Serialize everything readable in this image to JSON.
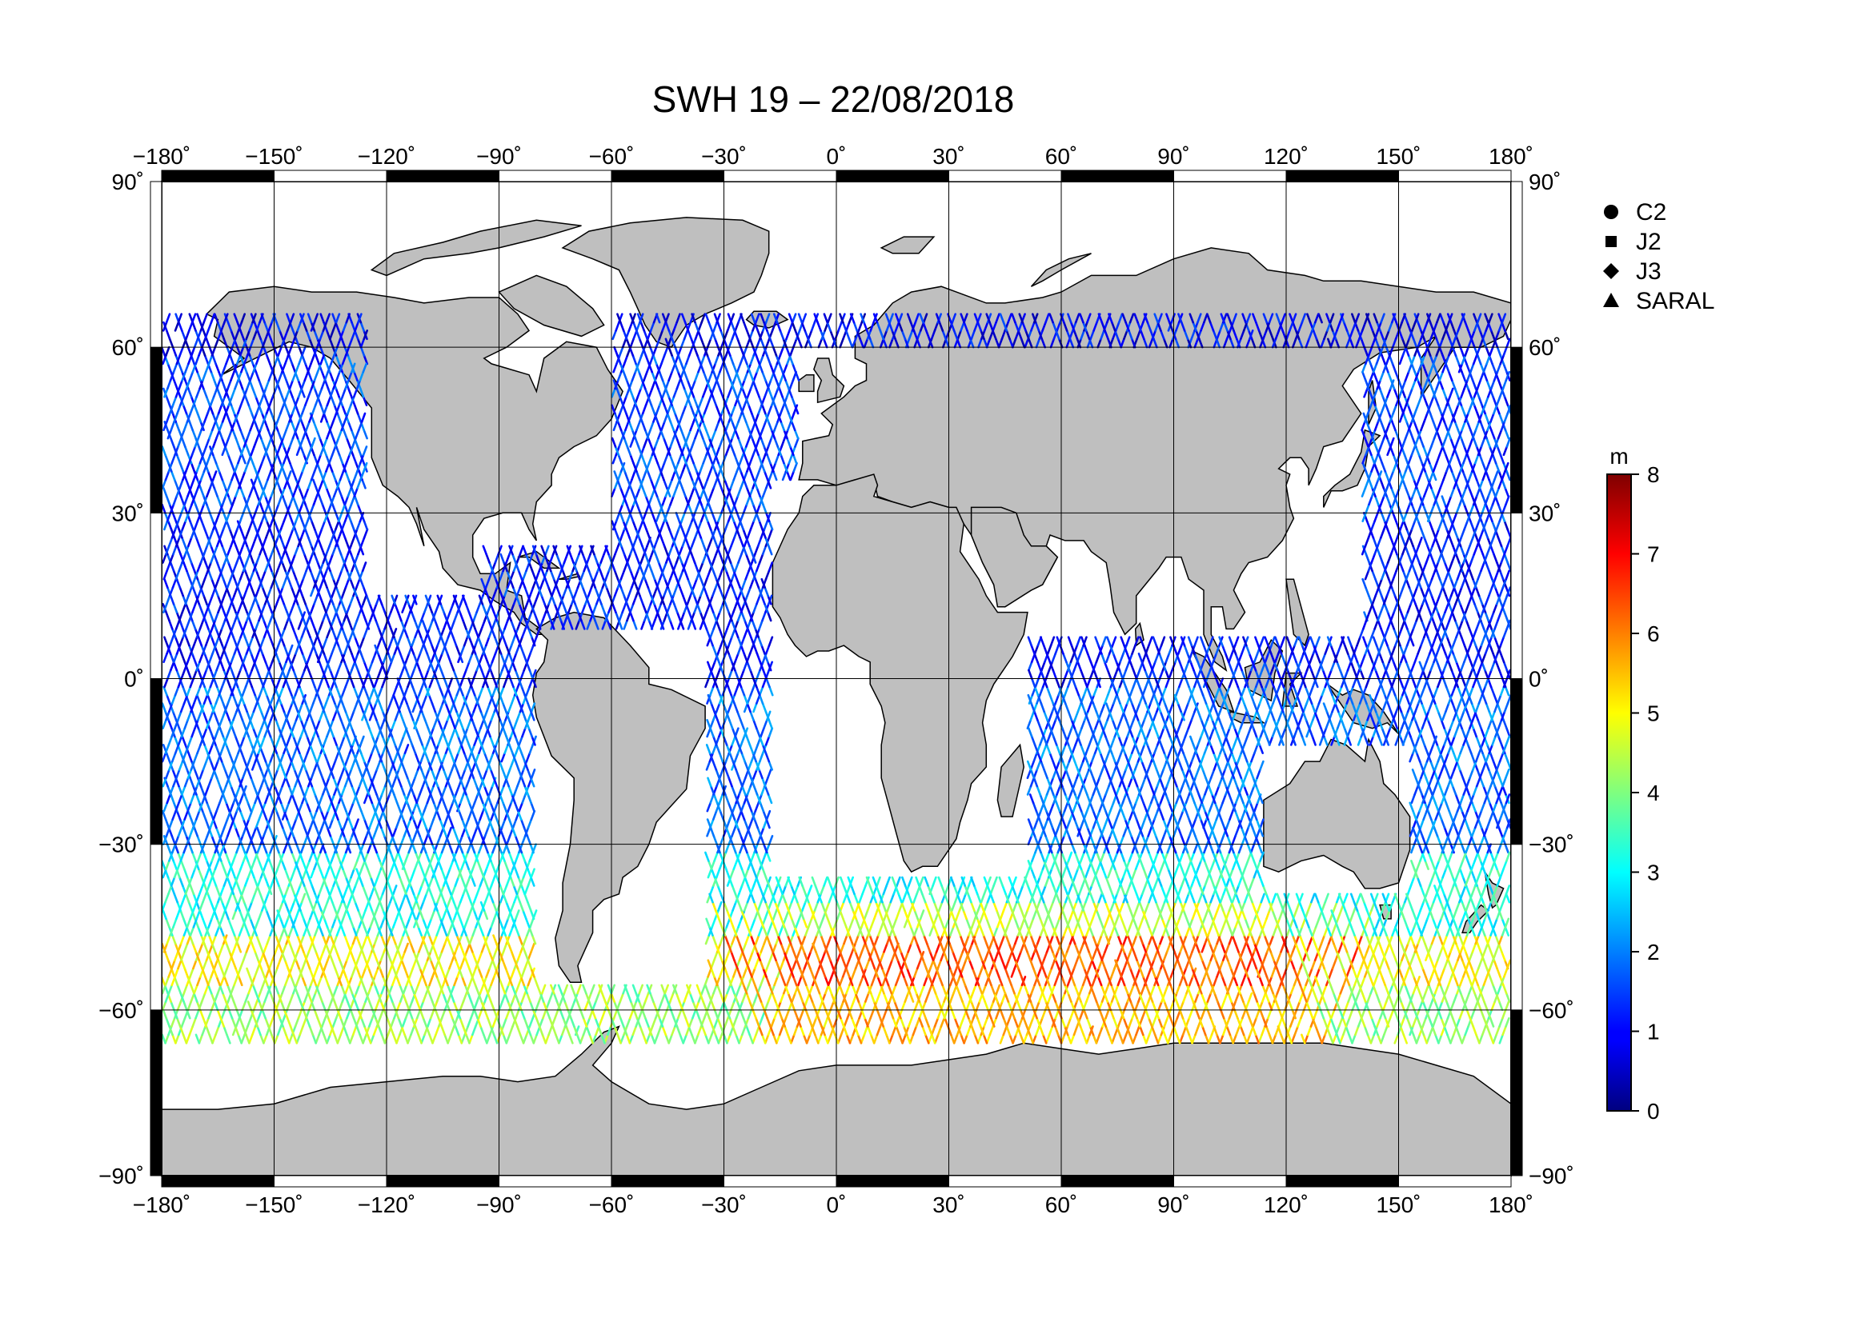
{
  "title": "SWH 19 – 22/08/2018",
  "map": {
    "lon_range": [
      -180,
      180
    ],
    "lat_range": [
      -90,
      90
    ],
    "lon_ticks": [
      -180,
      -150,
      -120,
      -90,
      -60,
      -30,
      0,
      30,
      60,
      90,
      120,
      150,
      180
    ],
    "lat_ticks": [
      -90,
      -60,
      -30,
      0,
      30,
      60,
      90
    ],
    "lon_tick_labels": [
      "−180˚",
      "−150˚",
      "−120˚",
      "−90˚",
      "−60˚",
      "−30˚",
      "0˚",
      "30˚",
      "60˚",
      "90˚",
      "120˚",
      "150˚",
      "180˚"
    ],
    "lat_tick_labels": [
      "−90˚",
      "−60˚",
      "−30˚",
      "0˚",
      "30˚",
      "60˚",
      "90˚"
    ],
    "grid": true,
    "land_color": "#bfbfbf",
    "coast_color": "#000000"
  },
  "legend": {
    "placement": "top-right",
    "items": [
      {
        "symbol": "circle",
        "label": "C2"
      },
      {
        "symbol": "square",
        "label": "J2"
      },
      {
        "symbol": "diamond",
        "label": "J3"
      },
      {
        "symbol": "triangle",
        "label": "SARAL"
      }
    ]
  },
  "colorbar": {
    "unit": "m",
    "min": 0,
    "max": 8,
    "tick_labels": [
      "0",
      "1",
      "2",
      "3",
      "4",
      "5",
      "6",
      "7",
      "8"
    ],
    "colormap": "jet"
  },
  "chart_data": {
    "type": "scatter",
    "title": "SWH 19 – 22/08/2018",
    "xlabel": "",
    "ylabel": "",
    "xlim": [
      -180,
      180
    ],
    "ylim": [
      -90,
      90
    ],
    "colorbar_unit": "m",
    "color_range": [
      0,
      8
    ],
    "series": [
      {
        "name": "C2",
        "marker": "circle"
      },
      {
        "name": "J2",
        "marker": "square"
      },
      {
        "name": "J3",
        "marker": "diamond"
      },
      {
        "name": "SARAL",
        "marker": "triangle"
      }
    ],
    "swh_by_latitude_band": [
      {
        "lat_range": [
          60,
          82
        ],
        "swh_m": 1.0
      },
      {
        "lat_range": [
          30,
          60
        ],
        "swh_m": 1.5
      },
      {
        "lat_range": [
          0,
          30
        ],
        "swh_m": 1.2
      },
      {
        "lat_range": [
          -30,
          0
        ],
        "swh_m": 1.8
      },
      {
        "lat_range": [
          -45,
          -30
        ],
        "swh_m": 3.2
      },
      {
        "lat_range": [
          -55,
          -45
        ],
        "swh_m": 5.0
      },
      {
        "lat_range": [
          -66,
          -55
        ],
        "swh_m": 4.2
      }
    ]
  }
}
